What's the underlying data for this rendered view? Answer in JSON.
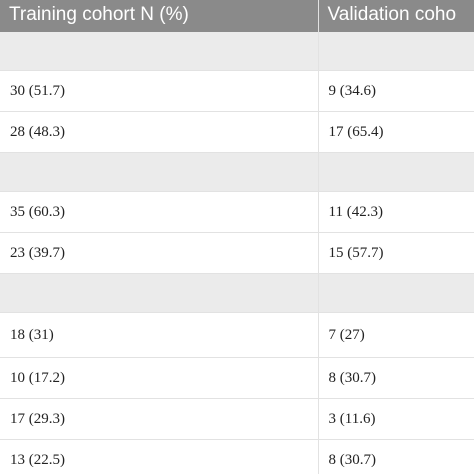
{
  "table": {
    "headers": [
      "Training cohort N (%)",
      "Validation coho"
    ],
    "rows": [
      {
        "type": "group",
        "cells": [
          "",
          ""
        ]
      },
      {
        "type": "data",
        "cells": [
          "30 (51.7)",
          "9 (34.6)"
        ]
      },
      {
        "type": "data",
        "cells": [
          "28 (48.3)",
          "17 (65.4)"
        ]
      },
      {
        "type": "group",
        "cells": [
          "",
          ""
        ]
      },
      {
        "type": "data",
        "cells": [
          "35 (60.3)",
          "11 (42.3)"
        ]
      },
      {
        "type": "data",
        "cells": [
          "23 (39.7)",
          "15 (57.7)"
        ]
      },
      {
        "type": "group",
        "cells": [
          "",
          ""
        ]
      },
      {
        "type": "data",
        "cells": [
          "18 (31)",
          "7 (27)"
        ]
      },
      {
        "type": "data",
        "cells": [
          "10 (17.2)",
          "8 (30.7)"
        ]
      },
      {
        "type": "data",
        "cells": [
          "17 (29.3)",
          "3 (11.6)"
        ]
      },
      {
        "type": "data",
        "cells": [
          "13 (22.5)",
          "8 (30.7)"
        ]
      }
    ]
  }
}
